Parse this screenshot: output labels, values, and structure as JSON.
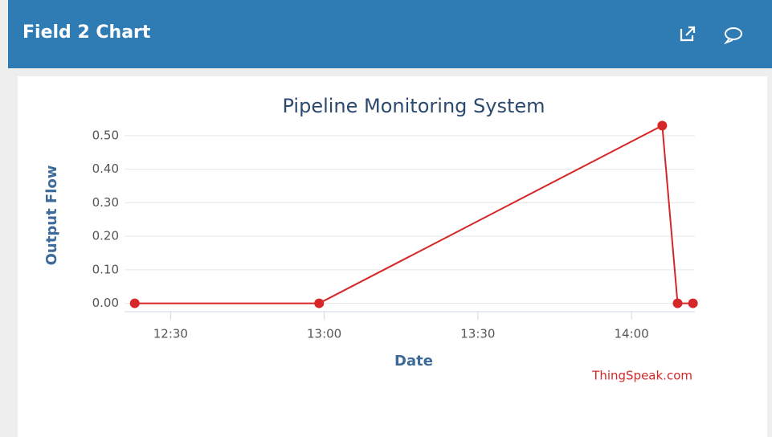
{
  "header": {
    "title": "Field 2 Chart"
  },
  "chart_data": {
    "type": "line",
    "title": "Pipeline Monitoring System",
    "x_label": "Date",
    "y_label": "Output Flow",
    "credit": "ThingSpeak.com",
    "x": [
      "12:23",
      "12:59",
      "14:06",
      "14:09",
      "14:12"
    ],
    "series": [
      {
        "name": "Field 2",
        "color": "#d62728",
        "values": [
          0,
          0,
          0.53,
          0,
          0
        ]
      }
    ],
    "xlim": [
      "12:21",
      "14:13"
    ],
    "xticks": [
      "12:30",
      "13:00",
      "13:30",
      "14:00"
    ],
    "ylim": [
      -0.025,
      0.55
    ],
    "yticks": [
      {
        "value": 0,
        "label": "0.00"
      },
      {
        "value": 0.1,
        "label": "0.10"
      },
      {
        "value": 0.2,
        "label": "0.20"
      },
      {
        "value": 0.3,
        "label": "0.30"
      },
      {
        "value": 0.4,
        "label": "0.40"
      },
      {
        "value": 0.5,
        "label": "0.50"
      }
    ],
    "grid": true
  }
}
